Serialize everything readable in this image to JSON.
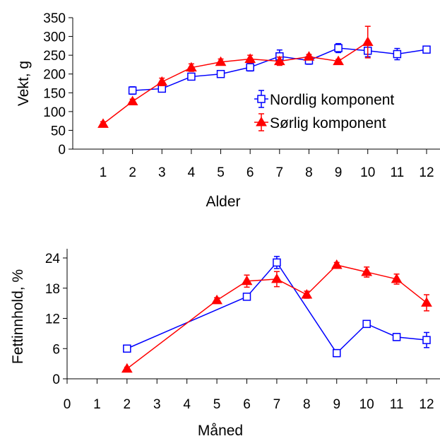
{
  "chart_data": [
    {
      "type": "line",
      "title": "",
      "xlabel": "Alder",
      "ylabel": "Vekt, g",
      "xlim": [
        0.5,
        12.5
      ],
      "ylim": [
        0,
        350
      ],
      "xticks": [
        1,
        2,
        3,
        4,
        5,
        6,
        7,
        8,
        9,
        10,
        11,
        12
      ],
      "yticks": [
        0,
        50,
        100,
        150,
        200,
        250,
        300,
        350
      ],
      "legend_position": "right",
      "series": [
        {
          "name": "Nordlig komponent",
          "color": "#0000ff",
          "marker": "open-square",
          "x": [
            2,
            3,
            4,
            5,
            6,
            7,
            8,
            9,
            10,
            11,
            12
          ],
          "y": [
            156,
            161,
            193,
            200,
            218,
            247,
            236,
            269,
            262,
            253,
            265
          ],
          "err": [
            10,
            7,
            6,
            6,
            10,
            17,
            10,
            12,
            16,
            15,
            5
          ]
        },
        {
          "name": "Sørlig komponent",
          "color": "#ff0000",
          "marker": "filled-triangle",
          "x": [
            1,
            2,
            3,
            4,
            5,
            6,
            7,
            8,
            9,
            10
          ],
          "y": [
            67,
            127,
            179,
            217,
            232,
            240,
            234,
            246,
            234,
            285
          ],
          "err": [
            6,
            6,
            10,
            10,
            8,
            10,
            11,
            6,
            5,
            42
          ]
        }
      ]
    },
    {
      "type": "line",
      "title": "",
      "xlabel": "Måned",
      "ylabel": "Fettinnhold, %",
      "xlim": [
        0,
        12.5
      ],
      "ylim": [
        0,
        25
      ],
      "xticks": [
        0,
        1,
        2,
        3,
        4,
        5,
        6,
        7,
        8,
        9,
        10,
        11,
        12
      ],
      "yticks": [
        0,
        6,
        12,
        18,
        24
      ],
      "series": [
        {
          "name": "Nordlig komponent",
          "color": "#0000ff",
          "marker": "open-square",
          "x": [
            2,
            6,
            7,
            9,
            10,
            11,
            12
          ],
          "y": [
            6.0,
            16.3,
            23.1,
            5.1,
            10.9,
            8.3,
            7.7
          ],
          "err": [
            0.4,
            0.6,
            1.2,
            0.7,
            0.6,
            0.7,
            1.5
          ]
        },
        {
          "name": "Sørlig komponent",
          "color": "#ff0000",
          "marker": "filled-triangle",
          "x": [
            2,
            5,
            6,
            7,
            8,
            9,
            10,
            11,
            12
          ],
          "y": [
            2.0,
            15.6,
            19.4,
            19.8,
            16.7,
            22.6,
            21.2,
            19.8,
            15.1
          ],
          "err": [
            0.3,
            0.5,
            1.2,
            1.5,
            0.7,
            0.5,
            1.0,
            1.0,
            1.6
          ]
        }
      ]
    }
  ]
}
